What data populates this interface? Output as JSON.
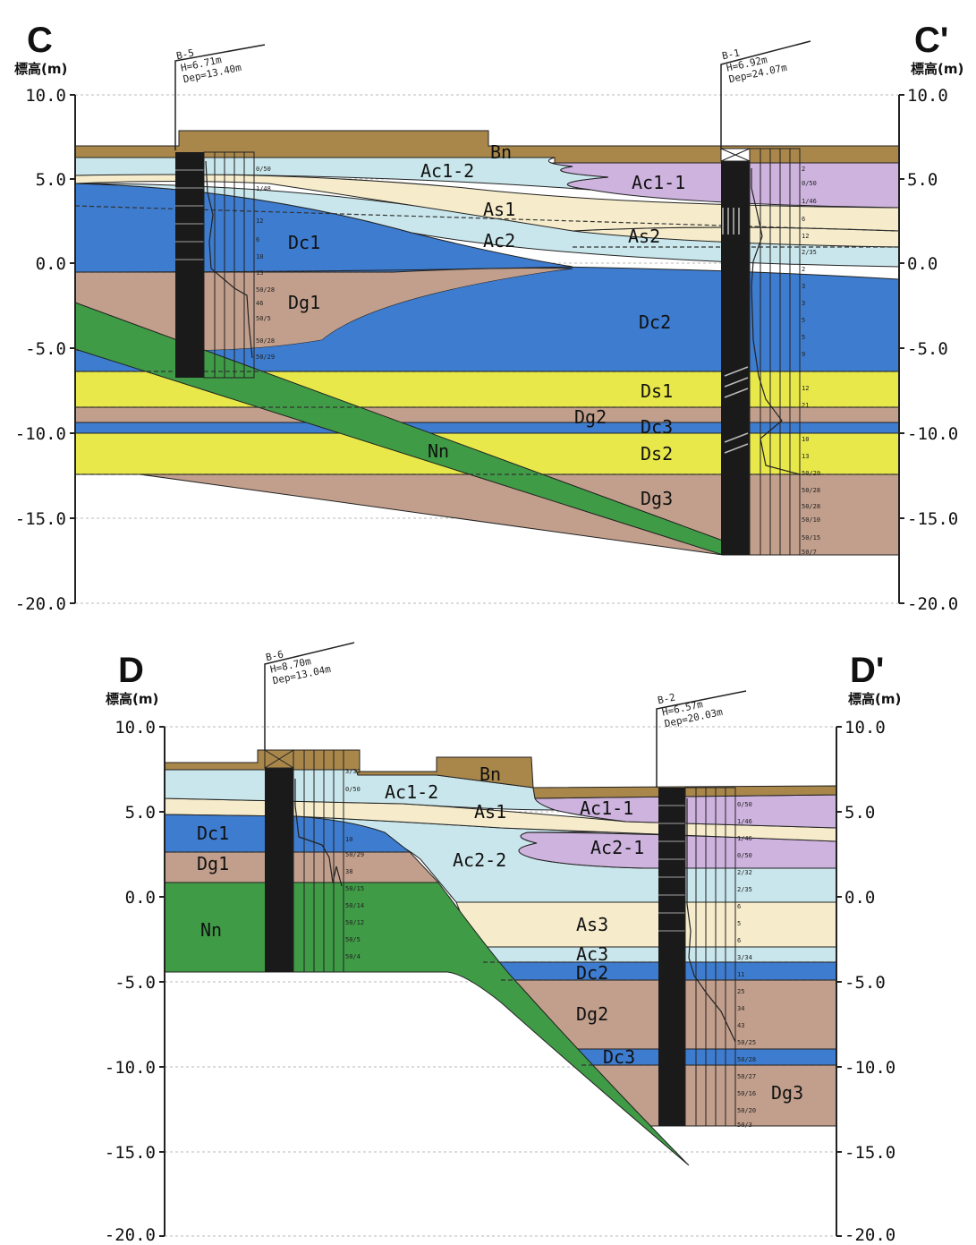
{
  "sections": [
    {
      "left_label": "C",
      "right_label": "C'",
      "unit": "標高(m)",
      "ticks": [
        "10.0",
        "5.0",
        "0.0",
        "-5.0",
        "-10.0",
        "-15.0",
        "-20.0"
      ],
      "boreholes": [
        {
          "name": "B-5",
          "h": "H=6.71m",
          "dep": "Dep=13.40m",
          "n_values": [
            "0/50",
            "1/48",
            "12",
            "6",
            "10",
            "13",
            "50/28",
            "46",
            "50/5",
            "50/28",
            "50/29"
          ]
        },
        {
          "name": "B-1",
          "h": "H=6.92m",
          "dep": "Dep=24.07m",
          "n_values": [
            "2",
            "0/50",
            "1/46",
            "6",
            "12",
            "2/35",
            "2",
            "3",
            "3",
            "5",
            "5",
            "9",
            "12",
            "21",
            "10",
            "13",
            "50/29",
            "50/28",
            "50/28",
            "50/10",
            "50/15",
            "50/7"
          ]
        }
      ],
      "layers": [
        "Bn",
        "Ac1-2",
        "Ac1-1",
        "As1",
        "Ac2",
        "As2",
        "Dc1",
        "Dg1",
        "Dc2",
        "Ds1",
        "Dg2",
        "Dc3",
        "Ds2",
        "Nn",
        "Dg3"
      ]
    },
    {
      "left_label": "D",
      "right_label": "D'",
      "unit": "標高(m)",
      "ticks": [
        "10.0",
        "5.0",
        "0.0",
        "-5.0",
        "-10.0",
        "-15.0",
        "-20.0"
      ],
      "boreholes": [
        {
          "name": "B-6",
          "h": "H=8.70m",
          "dep": "Dep=13.04m",
          "n_values": [
            "3/32",
            "0/50",
            "10",
            "50/29",
            "38",
            "50/15",
            "50/14",
            "50/12",
            "50/5",
            "50/4"
          ]
        },
        {
          "name": "B-2",
          "h": "H=6.57m",
          "dep": "Dep=20.03m",
          "n_values": [
            "0/50",
            "1/46",
            "1/46",
            "0/50",
            "2/32",
            "2/35",
            "6",
            "5",
            "6",
            "3/34",
            "11",
            "25",
            "34",
            "43",
            "50/25",
            "50/28",
            "50/27",
            "50/16",
            "50/20",
            "50/3"
          ]
        }
      ],
      "layers": [
        "Bn",
        "Ac1-2",
        "Ac1-1",
        "As1",
        "Dc1",
        "Dg1",
        "Ac2-2",
        "Ac2-1",
        "Nn",
        "As3",
        "Ac3",
        "Dc2",
        "Dg2",
        "Dc3",
        "Dg3"
      ]
    }
  ],
  "colors": {
    "Bn": "#a9874a",
    "Ac1": "#cdb3de",
    "Ac_light": "#c9e6ec",
    "As": "#f6eccb",
    "Dc": "#3d7ccf",
    "Dg": "#c29f8c",
    "Ds": "#e8e84a",
    "Nn": "#3f9b46"
  }
}
